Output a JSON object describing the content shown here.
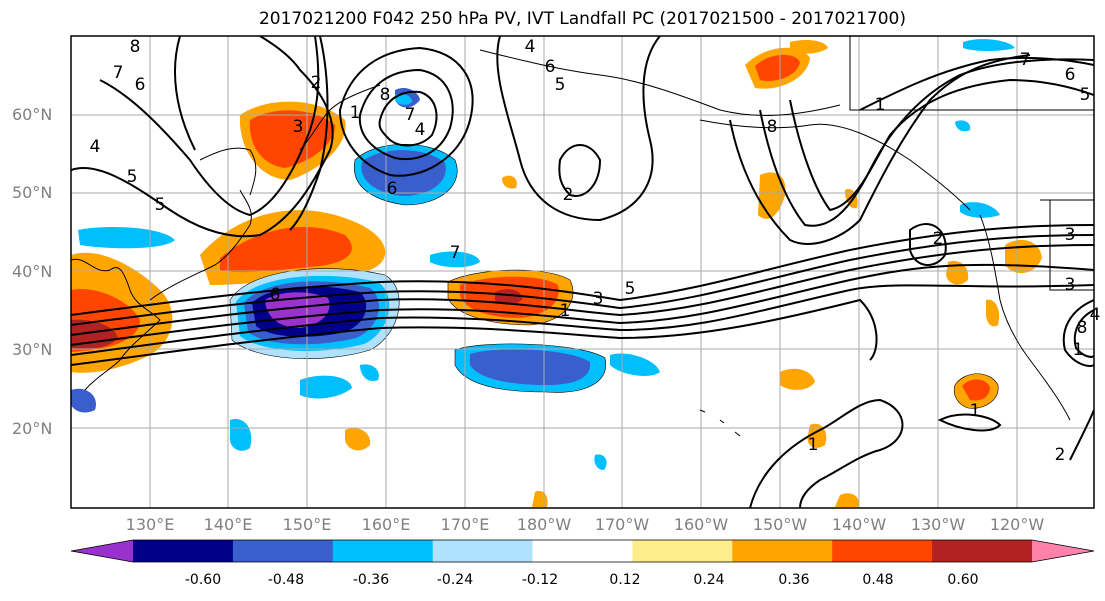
{
  "title": "2017021200 F042 250 hPa PV, IVT Landfall PC (2017021500 - 2017021700)",
  "lat_labels": [
    "60°N",
    "50°N",
    "40°N",
    "30°N",
    "20°N"
  ],
  "lon_labels": [
    "130°E",
    "140°E",
    "150°E",
    "160°E",
    "170°E",
    "180°W",
    "170°W",
    "160°W",
    "150°W",
    "140°W",
    "130°W",
    "120°W"
  ],
  "colorbar": {
    "ticks": [
      "-0.60",
      "-0.48",
      "-0.36",
      "-0.24",
      "-0.12",
      "0.12",
      "0.24",
      "0.36",
      "0.48",
      "0.60"
    ],
    "colors": [
      "#9932cc",
      "#00008b",
      "#3a5fcd",
      "#00bfff",
      "#b0e2ff",
      "#ffffff",
      "#ffec8b",
      "#ffa500",
      "#ff4500",
      "#b22222",
      "#ff82ab"
    ]
  },
  "contour_labels": [
    "8",
    "7",
    "6",
    "4",
    "5",
    "5",
    "3",
    "2",
    "1",
    "8",
    "6",
    "7",
    "4",
    "4",
    "6",
    "5",
    "2",
    "3",
    "1",
    "8",
    "7",
    "6",
    "5",
    "4",
    "3",
    "2",
    "1",
    "1",
    "3",
    "2",
    "1",
    "7",
    "6",
    "5",
    "8",
    "1"
  ]
}
